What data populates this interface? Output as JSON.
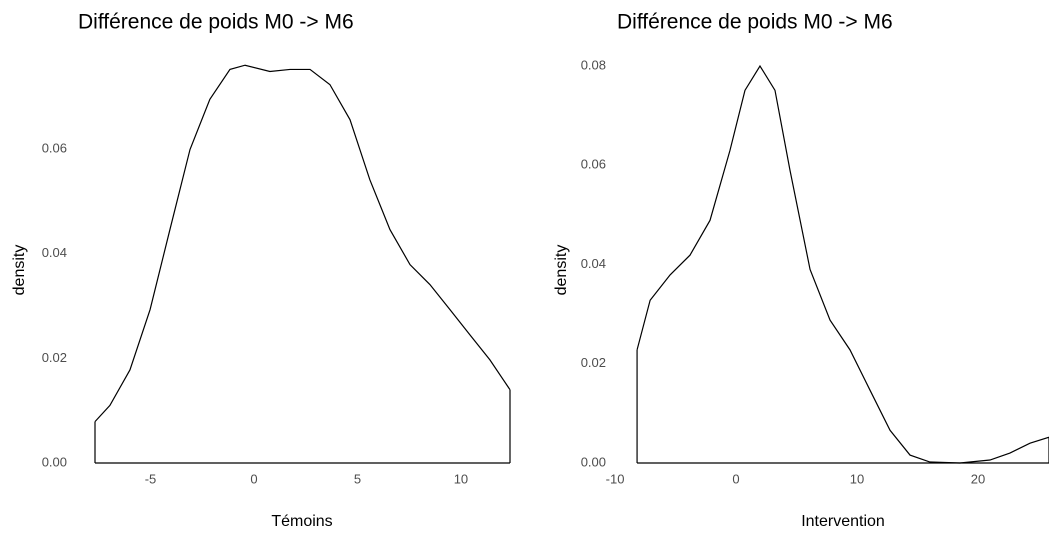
{
  "chart_data": [
    {
      "type": "density",
      "title": "Différence de poids M0 -> M6",
      "x_label": "Témoins",
      "y_label": "density",
      "color": "#000000",
      "xlim": [
        -7.68,
        12.37
      ],
      "ylim": [
        0,
        0.077
      ],
      "xticks": [
        -5,
        0,
        5,
        10
      ],
      "yticks": [
        {
          "value": 0,
          "label": "0.00"
        },
        {
          "value": 0.02,
          "label": "0.02"
        },
        {
          "value": 0.04,
          "label": "0.04"
        },
        {
          "value": 0.06,
          "label": "0.06"
        }
      ],
      "x": [
        -7.68,
        -6.96,
        -5.99,
        -5.02,
        -4.06,
        -3.09,
        -2.13,
        -1.16,
        -0.43,
        0.77,
        1.74,
        2.71,
        3.67,
        4.64,
        5.6,
        6.57,
        7.54,
        8.5,
        9.47,
        10.43,
        11.4,
        12.37
      ],
      "values": [
        0.0079,
        0.011,
        0.0178,
        0.0293,
        0.0446,
        0.0599,
        0.0695,
        0.0752,
        0.076,
        0.0748,
        0.0752,
        0.0752,
        0.0723,
        0.0656,
        0.0541,
        0.0446,
        0.0379,
        0.0341,
        0.0293,
        0.0245,
        0.0197,
        0.014
      ]
    },
    {
      "type": "density",
      "title": "Différence de poids M0 -> M6",
      "x_label": "Intervention",
      "y_label": "density",
      "color": "#000000",
      "xlim": [
        -10.5,
        25.87
      ],
      "ylim": [
        0,
        0.08
      ],
      "xticks": [
        -10,
        0,
        10,
        20
      ],
      "yticks": [
        {
          "value": 0,
          "label": "0.00"
        },
        {
          "value": 0.02,
          "label": "0.02"
        },
        {
          "value": 0.04,
          "label": "0.04"
        },
        {
          "value": 0.06,
          "label": "0.06"
        },
        {
          "value": 0.08,
          "label": "0.08"
        }
      ],
      "x": [
        -8.18,
        -7.1,
        -5.45,
        -3.8,
        -2.15,
        -0.5,
        0.74,
        1.98,
        3.22,
        4.46,
        6.12,
        7.77,
        9.42,
        11.07,
        12.73,
        14.38,
        16.03,
        18.51,
        20.99,
        22.64,
        24.3,
        25.87
      ],
      "values": [
        0.0228,
        0.0328,
        0.0379,
        0.0419,
        0.0489,
        0.063,
        0.0751,
        0.08,
        0.0751,
        0.059,
        0.039,
        0.0288,
        0.0228,
        0.0147,
        0.0066,
        0.0016,
        0.0002,
        0,
        0.0006,
        0.002,
        0.004,
        0.0052
      ]
    }
  ]
}
